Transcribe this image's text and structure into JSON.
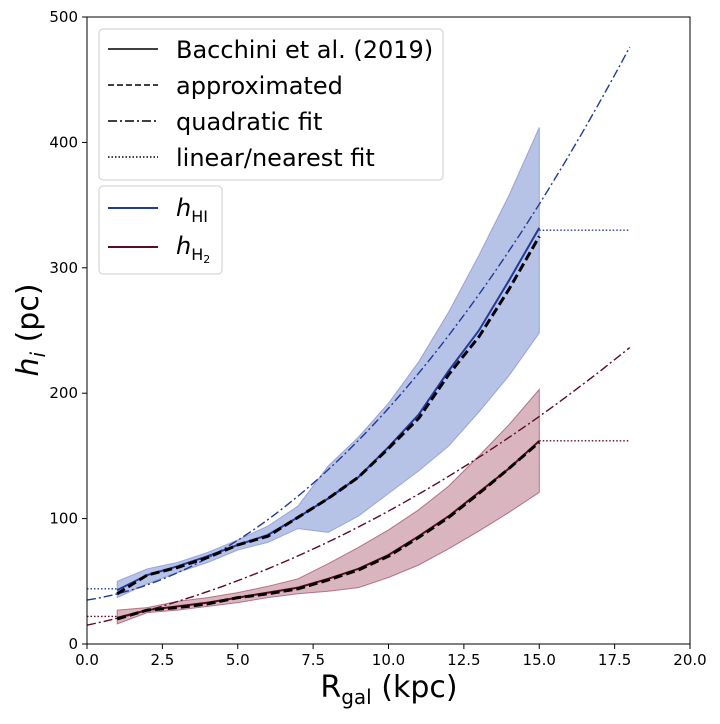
{
  "chart_data": {
    "type": "line",
    "xlabel": "R",
    "xlabel_sub": "gal",
    "xlabel_unit": " (kpc)",
    "ylabel": "h",
    "ylabel_sub": "i",
    "ylabel_unit": " (pc)",
    "xlim": [
      0,
      20
    ],
    "ylim": [
      0,
      500
    ],
    "xticks": [
      0,
      2.5,
      5,
      7.5,
      10,
      12.5,
      15,
      17.5,
      20
    ],
    "xtick_labels": [
      "0.0",
      "2.5",
      "5.0",
      "7.5",
      "10.0",
      "12.5",
      "15.0",
      "17.5",
      "20.0"
    ],
    "yticks": [
      0,
      100,
      200,
      300,
      400,
      500
    ],
    "ytick_labels": [
      "0",
      "100",
      "200",
      "300",
      "400",
      "500"
    ],
    "grid": false,
    "legend_styles": {
      "position": "upper-left",
      "entries": [
        {
          "label": "Bacchini et al. (2019)",
          "dash": "solid"
        },
        {
          "label": "approximated",
          "dash": "dashed"
        },
        {
          "label": "quadratic fit",
          "dash": "dashdot"
        },
        {
          "label": "linear/nearest fit",
          "dash": "dotted"
        }
      ]
    },
    "legend_species": {
      "position": "upper-left",
      "entries": [
        {
          "label_main": "h",
          "label_sub": "HI",
          "label_subsub": "",
          "color": "#1f3a9c"
        },
        {
          "label_main": "h",
          "label_sub": "H",
          "label_subsub": "2",
          "color": "#5c0a25"
        }
      ]
    },
    "series": [
      {
        "species": "HI",
        "color": "#1f3a9c",
        "band_color": "#7b8fd4",
        "band_opacity": 0.55,
        "x": [
          1,
          2,
          3,
          4,
          5,
          6,
          7,
          8,
          9,
          10,
          11,
          12,
          13,
          14,
          15
        ],
        "bacchini": [
          43,
          55,
          62,
          70,
          79,
          87,
          101,
          116,
          133,
          157,
          183,
          218,
          250,
          290,
          332
        ],
        "approximated": [
          40,
          55,
          61,
          69,
          79,
          86,
          101,
          116,
          133,
          156,
          180,
          215,
          245,
          283,
          325
        ],
        "band_upper": [
          50,
          60,
          65,
          73,
          83,
          94,
          110,
          142,
          165,
          192,
          225,
          265,
          310,
          358,
          412
        ],
        "band_lower": [
          37,
          48,
          57,
          65,
          75,
          81,
          92,
          89,
          102,
          120,
          138,
          158,
          185,
          214,
          248
        ],
        "quadratic_fit": {
          "x": [
            0,
            18
          ],
          "coeffs": [
            35,
            3.8,
            1.15
          ]
        },
        "nearest_fit": {
          "left": {
            "x": [
              0,
              1
            ],
            "y": 44
          },
          "right": {
            "x": [
              15,
              18
            ],
            "y": 330
          }
        }
      },
      {
        "species": "H2",
        "color": "#5c0a25",
        "band_color": "#a0475e",
        "band_opacity": 0.4,
        "x": [
          1,
          2,
          3,
          4,
          5,
          6,
          7,
          8,
          9,
          10,
          11,
          12,
          13,
          14,
          15
        ],
        "bacchini": [
          21,
          27,
          30,
          33,
          37,
          41,
          45,
          52,
          60,
          71,
          86,
          102,
          121,
          140,
          162
        ],
        "approximated": [
          20,
          27,
          29,
          32,
          37,
          40,
          44,
          51,
          59,
          70,
          85,
          101,
          120,
          140,
          161
        ],
        "band_upper": [
          27,
          29,
          34,
          37,
          41,
          46,
          52,
          64,
          77,
          91,
          107,
          126,
          150,
          175,
          203
        ],
        "band_lower": [
          16,
          25,
          27,
          30,
          33,
          37,
          40,
          42,
          45,
          53,
          63,
          76,
          90,
          105,
          121
        ],
        "quadratic_fit": {
          "x": [
            0,
            18
          ],
          "coeffs": [
            15,
            5.1,
            0.4
          ]
        },
        "nearest_fit": {
          "left": {
            "x": [
              0,
              1
            ],
            "y": 22
          },
          "right": {
            "x": [
              15,
              18
            ],
            "y": 162
          }
        }
      }
    ]
  }
}
